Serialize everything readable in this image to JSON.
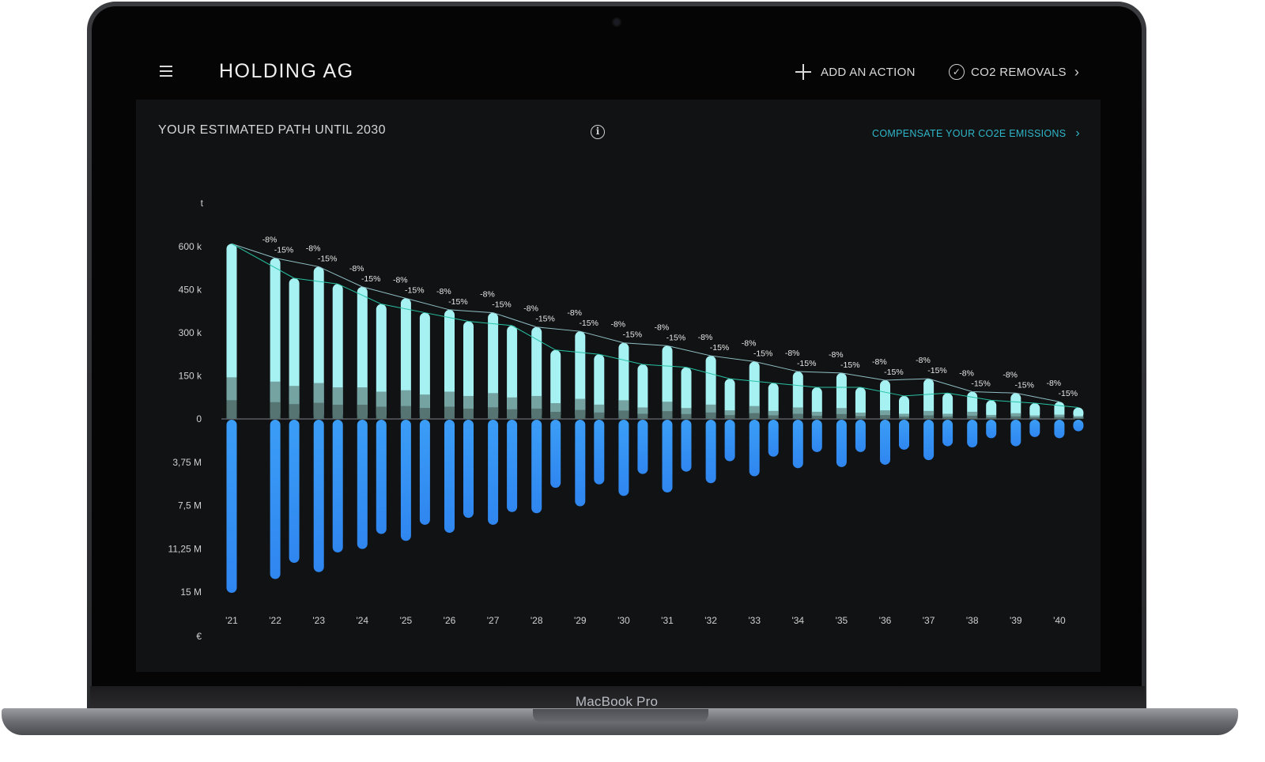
{
  "app": {
    "org_name": "HOLDING AG",
    "add_action_label": "ADD AN ACTION",
    "removals_label": "CO2 REMOVALS",
    "device_label": "MacBook Pro"
  },
  "panel": {
    "title": "YOUR ESTIMATED PATH UNTIL 2030",
    "compensate_label": "COMPENSATE YOUR CO2E EMISSIONS"
  },
  "icons": {
    "menu": "hamburger-menu-icon",
    "add": "plus-icon",
    "removals": "check-circle-icon",
    "removals_arrow": "chevron-right-icon",
    "info": "info-icon",
    "compensate_arrow": "chevron-right-icon"
  },
  "colors": {
    "emissions_bar": "#a6f1f2",
    "emissions_base": "#6f9a99",
    "cost_bar_top": "#3b9df6",
    "cost_bar_bottom": "#2f86f0",
    "trend_line_a": "#8fbfc4",
    "trend_line_b": "#27c3a4",
    "compensate_link": "#2fb6c9",
    "zero_line": "#7d8388"
  },
  "chart_data": {
    "type": "bar",
    "top_unit": "t",
    "bottom_unit": "€",
    "top_ticks": [
      {
        "label": "0",
        "value": 0
      },
      {
        "label": "150 k",
        "value": 150000
      },
      {
        "label": "300 k",
        "value": 300000
      },
      {
        "label": "450 k",
        "value": 450000
      },
      {
        "label": "600 k",
        "value": 600000
      }
    ],
    "bottom_ticks": [
      {
        "label": "3,75 M",
        "value": 3750000
      },
      {
        "label": "7,5 M",
        "value": 7500000
      },
      {
        "label": "11,25 M",
        "value": 11250000
      },
      {
        "label": "15 M",
        "value": 15000000
      }
    ],
    "categories": [
      "'21",
      "'22",
      "'23",
      "'24",
      "'25",
      "'26",
      "'27",
      "'28",
      "'29",
      "'30",
      "'31",
      "'32",
      "'33",
      "'34",
      "'35",
      "'36",
      "'37",
      "'38",
      "'39",
      "'40"
    ],
    "reduction_labels": [
      "-8%",
      "-15%"
    ],
    "series": [
      {
        "emissions_a": [
          610000,
          560000,
          530000,
          460000,
          420000,
          380000,
          370000,
          320000,
          305000,
          265000,
          255000,
          220000,
          200000,
          165000,
          160000,
          135000,
          140000,
          95000,
          90000,
          60000
        ],
        "base_a": [
          145000,
          130000,
          125000,
          110000,
          100000,
          95000,
          90000,
          80000,
          70000,
          65000,
          60000,
          50000,
          45000,
          40000,
          38000,
          30000,
          28000,
          25000,
          20000,
          15000
        ],
        "cost_a": [
          15000000,
          13800000,
          13200000,
          11200000,
          10500000,
          9800000,
          9100000,
          8100000,
          7500000,
          6600000,
          6300000,
          5500000,
          4900000,
          4200000,
          4100000,
          3900000,
          3500000,
          2400000,
          2300000,
          1600000
        ],
        "emissions_b": [
          null,
          490000,
          470000,
          400000,
          370000,
          340000,
          325000,
          240000,
          225000,
          190000,
          180000,
          140000,
          125000,
          110000,
          110000,
          80000,
          90000,
          65000,
          55000,
          40000
        ],
        "base_b": [
          null,
          115000,
          110000,
          95000,
          85000,
          80000,
          75000,
          55000,
          50000,
          40000,
          38000,
          30000,
          28000,
          25000,
          22000,
          18000,
          18000,
          14000,
          12000,
          10000
        ],
        "cost_b": [
          null,
          12400000,
          11500000,
          9900000,
          9100000,
          8500000,
          8000000,
          5900000,
          5600000,
          4700000,
          4500000,
          3600000,
          3200000,
          2800000,
          2800000,
          2600000,
          2300000,
          1600000,
          1500000,
          1000000
        ]
      }
    ]
  }
}
